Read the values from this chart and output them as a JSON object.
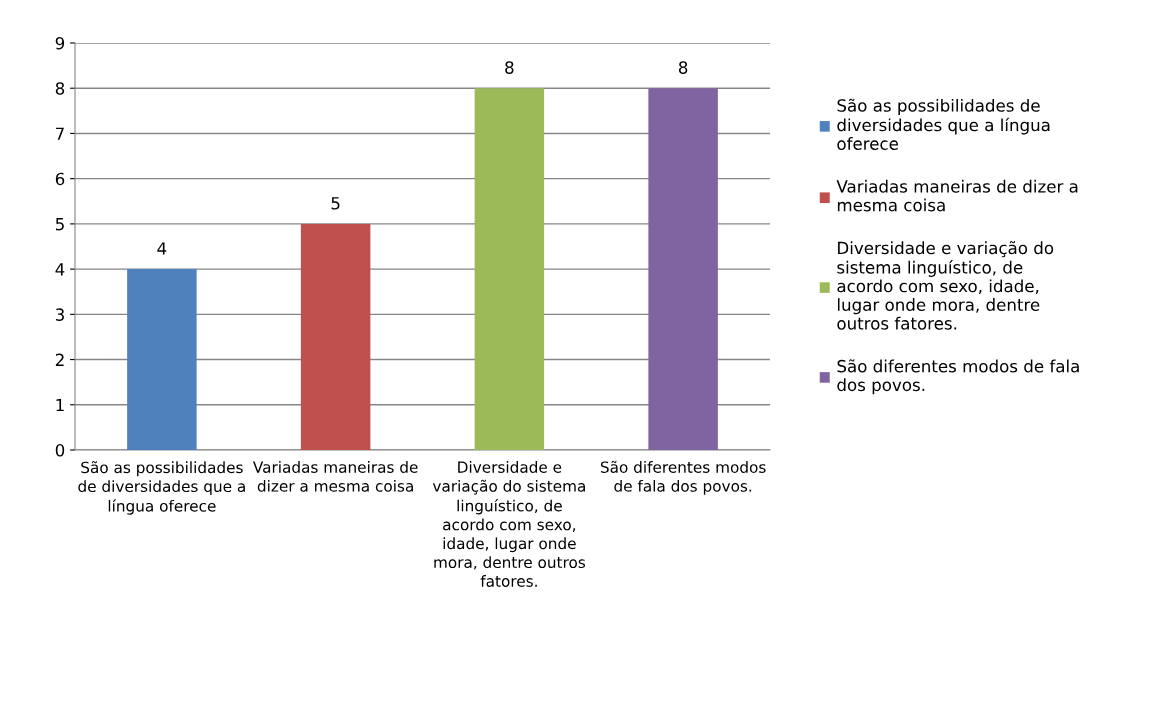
{
  "chart_data": {
    "type": "bar",
    "categories": [
      "São as possibilidades de diversidades que a língua oferece",
      "Variadas maneiras de dizer a mesma coisa",
      "Diversidade e variação do sistema linguístico, de acordo com sexo, idade, lugar onde mora, dentre outros fatores.",
      "São diferentes modos de fala dos povos."
    ],
    "series": [
      {
        "name": "São as possibilidades de diversidades que a língua oferece",
        "color": "#4f81bd",
        "values": [
          4,
          null,
          null,
          null
        ]
      },
      {
        "name": "Variadas maneiras de dizer a mesma coisa",
        "color": "#c0504d",
        "values": [
          null,
          5,
          null,
          null
        ]
      },
      {
        "name": "Diversidade e variação do sistema linguístico, de acordo com sexo, idade, lugar onde mora, dentre outros fatores.",
        "color": "#9bbb59",
        "values": [
          null,
          null,
          8,
          null
        ]
      },
      {
        "name": "São diferentes modos de fala dos povos.",
        "color": "#8064a2",
        "values": [
          null,
          null,
          null,
          8
        ]
      }
    ],
    "ylim": [
      0,
      9
    ],
    "yticks": [
      0,
      1,
      2,
      3,
      4,
      5,
      6,
      7,
      8,
      9
    ],
    "grid": "y",
    "data_labels": true,
    "legend": "right"
  }
}
